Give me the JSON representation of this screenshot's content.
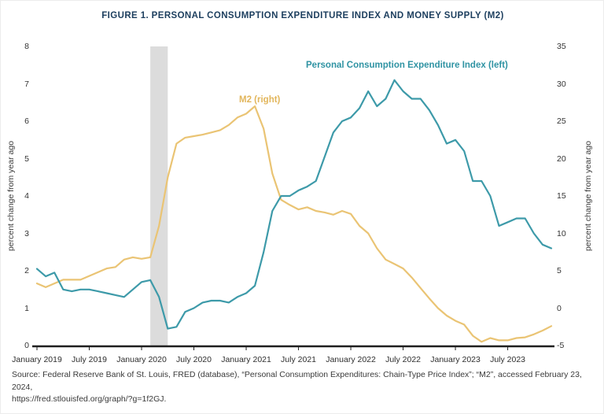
{
  "figure": {
    "title": "FIGURE 1. PERSONAL CONSUMPTION EXPENDITURE INDEX AND MONEY SUPPLY (M2)",
    "source_line1": "Source: Federal Reserve Bank of St. Louis, FRED (database), “Personal Consumption Expenditures: Chain-Type Price Index”; “M2”, accessed February 23, 2024,",
    "source_line2": "https://fred.stlouisfed.org/graph/?g=1f2GJ."
  },
  "chart_data": {
    "type": "line",
    "title": "FIGURE 1. PERSONAL CONSUMPTION EXPENDITURE INDEX AND MONEY SUPPLY (M2)",
    "x_frequency": "monthly",
    "x_months": [
      "2019-01",
      "2019-02",
      "2019-03",
      "2019-04",
      "2019-05",
      "2019-06",
      "2019-07",
      "2019-08",
      "2019-09",
      "2019-10",
      "2019-11",
      "2019-12",
      "2020-01",
      "2020-02",
      "2020-03",
      "2020-04",
      "2020-05",
      "2020-06",
      "2020-07",
      "2020-08",
      "2020-09",
      "2020-10",
      "2020-11",
      "2020-12",
      "2021-01",
      "2021-02",
      "2021-03",
      "2021-04",
      "2021-05",
      "2021-06",
      "2021-07",
      "2021-08",
      "2021-09",
      "2021-10",
      "2021-11",
      "2021-12",
      "2022-01",
      "2022-02",
      "2022-03",
      "2022-04",
      "2022-05",
      "2022-06",
      "2022-07",
      "2022-08",
      "2022-09",
      "2022-10",
      "2022-11",
      "2022-12",
      "2023-01",
      "2023-02",
      "2023-03",
      "2023-04",
      "2023-05",
      "2023-06",
      "2023-07",
      "2023-08",
      "2023-09",
      "2023-10",
      "2023-11",
      "2023-12"
    ],
    "x_tick_labels": [
      "January 2019",
      "July 2019",
      "January 2020",
      "July 2020",
      "January 2021",
      "July 2021",
      "January 2022",
      "July 2022",
      "January 2023",
      "July 2023"
    ],
    "x_tick_month_indices": [
      0,
      6,
      12,
      18,
      24,
      30,
      36,
      42,
      48,
      54
    ],
    "axes": {
      "left": {
        "label": "percent change from year ago",
        "min": 0,
        "max": 8,
        "ticks": [
          0,
          1,
          2,
          3,
          4,
          5,
          6,
          7,
          8
        ]
      },
      "right": {
        "label": "percent change from year ago",
        "min": -5,
        "max": 35,
        "ticks": [
          -5,
          0,
          5,
          10,
          15,
          20,
          25,
          30,
          35
        ]
      }
    },
    "series": [
      {
        "name": "Personal Consumption Expenditure Index (left)",
        "axis": "left",
        "color": "#3D9AA9",
        "values": [
          2.05,
          1.85,
          1.95,
          1.5,
          1.45,
          1.5,
          1.5,
          1.45,
          1.4,
          1.35,
          1.3,
          1.5,
          1.7,
          1.75,
          1.3,
          0.45,
          0.5,
          0.9,
          1.0,
          1.15,
          1.2,
          1.2,
          1.15,
          1.3,
          1.4,
          1.6,
          2.5,
          3.6,
          4.0,
          4.0,
          4.15,
          4.25,
          4.4,
          5.05,
          5.7,
          6.0,
          6.1,
          6.35,
          6.8,
          6.4,
          6.6,
          7.1,
          6.8,
          6.6,
          6.6,
          6.3,
          5.9,
          5.4,
          5.5,
          5.2,
          4.4,
          4.4,
          4.0,
          3.2,
          3.3,
          3.4,
          3.4,
          3.0,
          2.7,
          2.6
        ]
      },
      {
        "name": "M2 (right)",
        "axis": "right",
        "color": "#EAC474",
        "values": [
          3.3,
          2.8,
          3.3,
          3.8,
          3.8,
          3.8,
          4.3,
          4.8,
          5.3,
          5.5,
          6.5,
          6.8,
          6.6,
          6.8,
          11.0,
          17.5,
          22.0,
          22.8,
          23.0,
          23.2,
          23.5,
          23.8,
          24.5,
          25.5,
          26.0,
          27.0,
          24.0,
          18.0,
          14.5,
          13.8,
          13.2,
          13.5,
          13.0,
          12.8,
          12.5,
          13.0,
          12.6,
          11.0,
          10.0,
          8.0,
          6.5,
          5.9,
          5.3,
          4.1,
          2.7,
          1.3,
          0.0,
          -1.0,
          -1.7,
          -2.2,
          -3.7,
          -4.5,
          -4.0,
          -4.3,
          -4.3,
          -4.0,
          -3.9,
          -3.5,
          -3.0,
          -2.4
        ]
      }
    ],
    "annotations": [
      {
        "text": "Personal Consumption Expenditure Index (left)",
        "color": "#2F93A3"
      },
      {
        "text": "M2 (right)",
        "color": "#E2B65C"
      }
    ],
    "recession_band": {
      "start_index": 13,
      "end_index": 15,
      "color": "#DCDCDC"
    },
    "grid": false,
    "legend_position": "inline-annotations"
  }
}
